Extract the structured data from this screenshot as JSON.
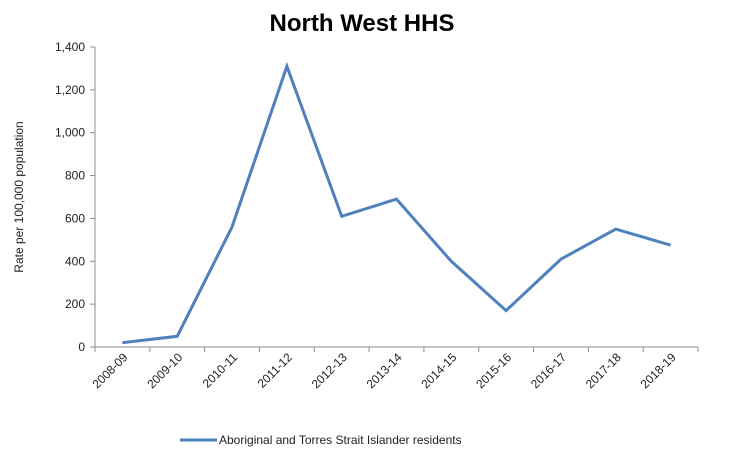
{
  "chart_data": {
    "type": "line",
    "title": "North West HHS",
    "xlabel": "",
    "ylabel": "Rate per 100,000 population",
    "categories": [
      "2008-09",
      "2009-10",
      "2010-11",
      "2011-12",
      "2012-13",
      "2013-14",
      "2014-15",
      "2015-16",
      "2016-17",
      "2017-18",
      "2018-19"
    ],
    "ylim": [
      0,
      1400
    ],
    "yticks": [
      0,
      200,
      400,
      600,
      800,
      1000,
      1200,
      1400
    ],
    "ytick_labels": [
      "0",
      "200",
      "400",
      "600",
      "800",
      "1,000",
      "1,200",
      "1,400"
    ],
    "grid": false,
    "legend_position": "bottom",
    "series": [
      {
        "name": "Aboriginal and Torres Strait Islander residents",
        "color": "#4f81bd",
        "values": [
          20,
          50,
          560,
          1310,
          610,
          690,
          400,
          170,
          410,
          550,
          475
        ]
      }
    ]
  }
}
